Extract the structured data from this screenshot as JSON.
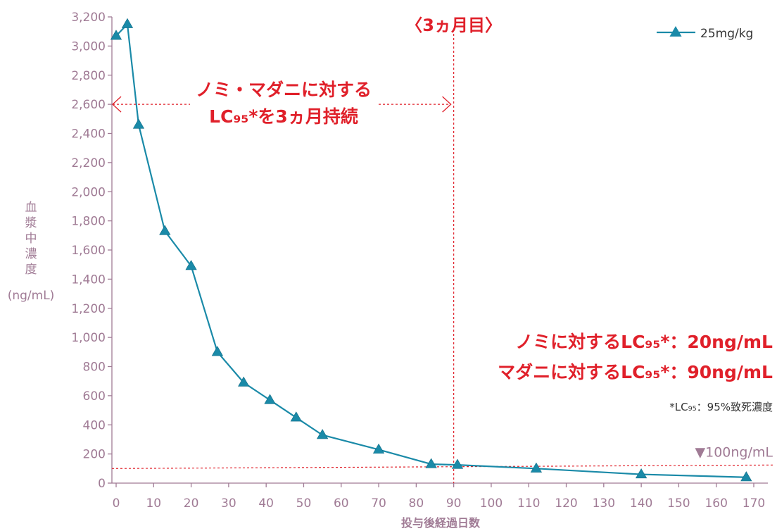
{
  "chart_data": {
    "type": "line",
    "xlabel": "投与後経過日数",
    "ylabel_chars": [
      "血",
      "漿",
      "中",
      "濃",
      "度"
    ],
    "ylabel_unit": "(ng/mL)",
    "xlim": [
      0,
      170
    ],
    "ylim": [
      0,
      3200
    ],
    "x_ticks": [
      "0",
      "10",
      "20",
      "30",
      "40",
      "50",
      "60",
      "70",
      "80",
      "90",
      "100",
      "110",
      "120",
      "130",
      "140",
      "150",
      "160",
      "170"
    ],
    "y_ticks": [
      "0",
      "200",
      "400",
      "600",
      "800",
      "1,000",
      "1,200",
      "1,400",
      "1,600",
      "1,800",
      "2,000",
      "2,200",
      "2,400",
      "2,600",
      "2,800",
      "3,000",
      "3,200"
    ],
    "series": [
      {
        "name": "25mg/kg",
        "color": "#1a8aa8",
        "marker": "triangle",
        "x": [
          0,
          3,
          6,
          13,
          20,
          27,
          34,
          41,
          48,
          55,
          70,
          84,
          91,
          112,
          140,
          168
        ],
        "y": [
          3070,
          3150,
          2460,
          1730,
          1490,
          900,
          690,
          570,
          450,
          330,
          230,
          130,
          125,
          100,
          60,
          40
        ]
      }
    ],
    "legend_position": "top-right",
    "annotations": {
      "three_month_label": "〈3ヵ月目〉",
      "three_month_day": 90,
      "arrow_y": 2600,
      "duration_line1": "ノミ・マダニに対する",
      "duration_line2": "LC₉₅*を3ヵ月持続",
      "flea_lc95": "ノミに対するLC₉₅*：20ng/mL",
      "tick_lc95": "マダニに対するLC₉₅*：90ng/mL",
      "footnote": "*LC₉₅：95%致死濃度",
      "ref_line_value": 100,
      "ref_line_label": "▼100ng/mL",
      "accent_color": "#e0202a",
      "axis_color": "#a07b95"
    }
  }
}
